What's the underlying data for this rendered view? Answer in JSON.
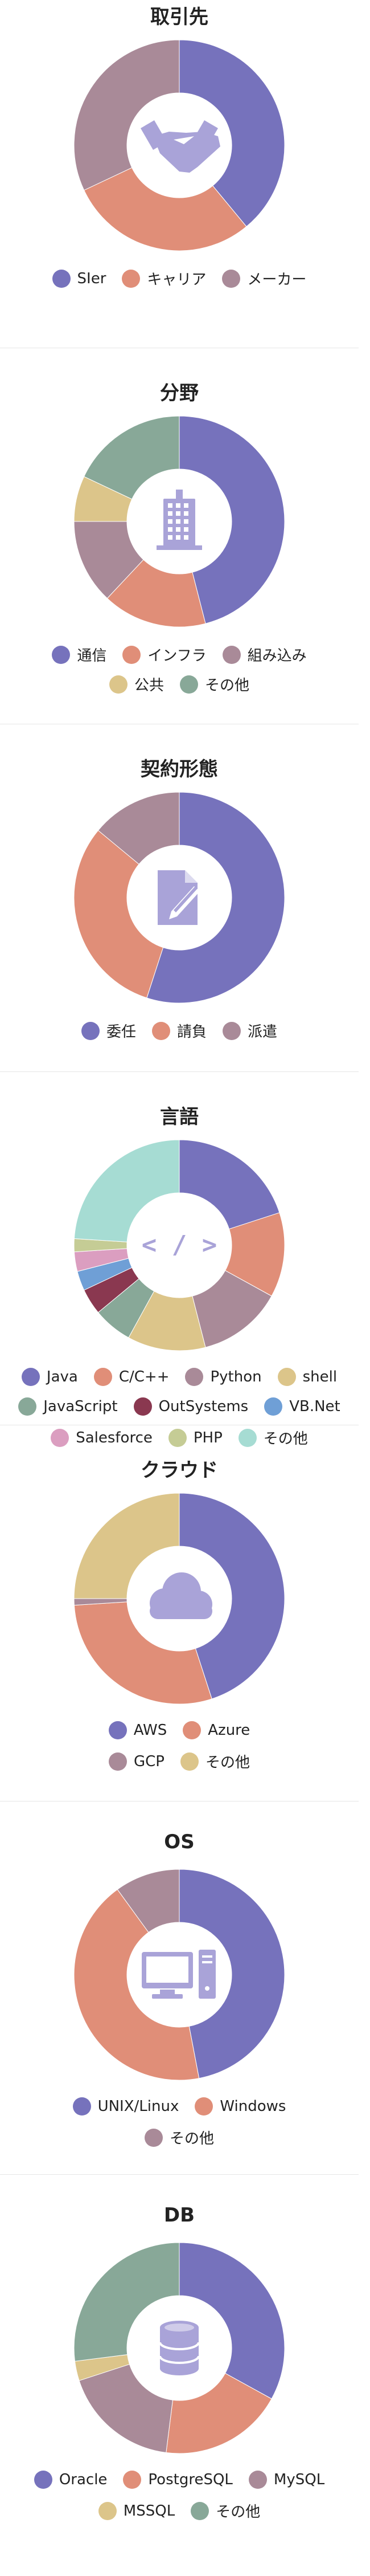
{
  "colors": {
    "indigo": "#7672bc",
    "salmon": "#e08e78",
    "mauve": "#a98a98",
    "sand": "#dcc58a",
    "sage": "#88a898",
    "maroon": "#8a3850",
    "blue": "#6f9fd6",
    "pink": "#db9ec0",
    "olive": "#c5cc95",
    "mint": "#a6dcd3",
    "icon": "#a9a3d8"
  },
  "chart_data": [
    {
      "type": "pie",
      "title": "取引先",
      "icon": "handshake-icon",
      "categories": [
        "SIer",
        "キャリア",
        "メーカー"
      ],
      "values": [
        39,
        29,
        32
      ],
      "colors": [
        "indigo",
        "salmon",
        "mauve"
      ],
      "legend_rows": [
        [
          0,
          1,
          2
        ]
      ]
    },
    {
      "type": "pie",
      "title": "分野",
      "icon": "building-icon",
      "categories": [
        "通信",
        "インフラ",
        "組み込み",
        "公共",
        "その他"
      ],
      "values": [
        46,
        16,
        13,
        7,
        18
      ],
      "colors": [
        "indigo",
        "salmon",
        "mauve",
        "sand",
        "sage"
      ],
      "legend_rows": [
        [
          0,
          1,
          2
        ],
        [
          3,
          4
        ]
      ]
    },
    {
      "type": "pie",
      "title": "契約形態",
      "icon": "document-icon",
      "categories": [
        "委任",
        "請負",
        "派遣"
      ],
      "values": [
        55,
        31,
        14
      ],
      "colors": [
        "indigo",
        "salmon",
        "mauve"
      ],
      "legend_rows": [
        [
          0,
          1,
          2
        ]
      ]
    },
    {
      "type": "pie",
      "title": "言語",
      "icon": "code-icon",
      "categories": [
        "Java",
        "C/C++",
        "Python",
        "shell",
        "JavaScript",
        "OutSystems",
        "VB.Net",
        "Salesforce",
        "PHP",
        "その他"
      ],
      "values": [
        20,
        13,
        13,
        12,
        6,
        4,
        3,
        3,
        2,
        24
      ],
      "colors": [
        "indigo",
        "salmon",
        "mauve",
        "sand",
        "sage",
        "maroon",
        "blue",
        "pink",
        "olive",
        "mint"
      ],
      "legend_rows": [
        [
          0,
          1,
          2,
          3
        ],
        [
          4,
          5,
          6
        ],
        [
          7,
          8,
          9
        ]
      ]
    },
    {
      "type": "pie",
      "title": "クラウド",
      "icon": "cloud-icon",
      "categories": [
        "AWS",
        "Azure",
        "GCP",
        "その他"
      ],
      "values": [
        45,
        29,
        1,
        25
      ],
      "colors": [
        "indigo",
        "salmon",
        "mauve",
        "sand"
      ],
      "legend_rows": [
        [
          0,
          1
        ],
        [
          2,
          3
        ]
      ]
    },
    {
      "type": "pie",
      "title": "OS",
      "icon": "computer-icon",
      "categories": [
        "UNIX/Linux",
        "Windows",
        "その他"
      ],
      "values": [
        47,
        43,
        10
      ],
      "colors": [
        "indigo",
        "salmon",
        "mauve"
      ],
      "legend_rows": [
        [
          0,
          1
        ],
        [
          2
        ]
      ]
    },
    {
      "type": "pie",
      "title": "DB",
      "icon": "database-icon",
      "categories": [
        "Oracle",
        "PostgreSQL",
        "MySQL",
        "MSSQL",
        "その他"
      ],
      "values": [
        33,
        19,
        18,
        3,
        27
      ],
      "colors": [
        "indigo",
        "salmon",
        "mauve",
        "sand",
        "sage"
      ],
      "legend_rows": [
        [
          0,
          1,
          2
        ],
        [
          3,
          4
        ]
      ]
    }
  ]
}
